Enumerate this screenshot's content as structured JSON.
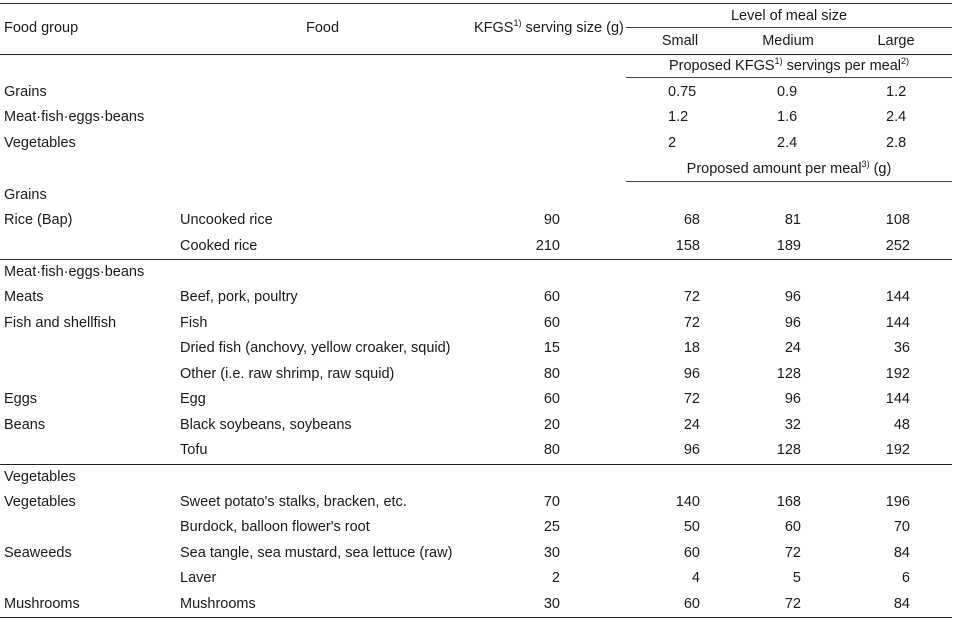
{
  "header": {
    "food_group": "Food group",
    "food": "Food",
    "serving_size": "KFGS",
    "serving_sup": "1)",
    "serving_suffix": " serving size (g)",
    "level": "Level of meal size",
    "small": "Small",
    "medium": "Medium",
    "large": "Large"
  },
  "servings_header": {
    "text": "Proposed KFGS",
    "sup1": "1)",
    "text2": " servings per meal",
    "sup2": "2)"
  },
  "servings": [
    {
      "group": "Grains",
      "small": "0.75",
      "medium": "0.9",
      "large": "1.2"
    },
    {
      "group": "Meat·fish·eggs·beans",
      "small": "1.2",
      "medium": "1.6",
      "large": "2.4"
    },
    {
      "group": "Vegetables",
      "small": "2",
      "medium": "2.4",
      "large": "2.8"
    }
  ],
  "amount_header": {
    "text": "Proposed amount per meal",
    "sup": "3)",
    "suffix": " (g)"
  },
  "sections": [
    {
      "title": "Grains",
      "rows": [
        {
          "group": "Rice (Bap)",
          "food": "Uncooked rice",
          "size": "90",
          "small": "68",
          "medium": "81",
          "large": "108"
        },
        {
          "group": "",
          "food": "Cooked rice",
          "size": "210",
          "small": "158",
          "medium": "189",
          "large": "252"
        }
      ]
    },
    {
      "title": "Meat·fish·eggs·beans",
      "rows": [
        {
          "group": "Meats",
          "food": "Beef, pork, poultry",
          "size": "60",
          "small": "72",
          "medium": "96",
          "large": "144"
        },
        {
          "group": "Fish and shellfish",
          "food": "Fish",
          "size": "60",
          "small": "72",
          "medium": "96",
          "large": "144"
        },
        {
          "group": "",
          "food": "Dried fish (anchovy, yellow croaker, squid)",
          "size": "15",
          "small": "18",
          "medium": "24",
          "large": "36"
        },
        {
          "group": "",
          "food": "Other (i.e. raw shrimp, raw squid)",
          "size": "80",
          "small": "96",
          "medium": "128",
          "large": "192"
        },
        {
          "group": "Eggs",
          "food": "Egg",
          "size": "60",
          "small": "72",
          "medium": "96",
          "large": "144"
        },
        {
          "group": "Beans",
          "food": "Black soybeans, soybeans",
          "size": "20",
          "small": "24",
          "medium": "32",
          "large": "48"
        },
        {
          "group": "",
          "food": "Tofu",
          "size": "80",
          "small": "96",
          "medium": "128",
          "large": "192"
        }
      ]
    },
    {
      "title": "Vegetables",
      "rows": [
        {
          "group": "Vegetables",
          "food": "Sweet potato's stalks, bracken, etc.",
          "size": "70",
          "small": "140",
          "medium": "168",
          "large": "196"
        },
        {
          "group": "",
          "food": "Burdock, balloon flower's root",
          "size": "25",
          "small": "50",
          "medium": "60",
          "large": "70"
        },
        {
          "group": "Seaweeds",
          "food": "Sea tangle, sea mustard, sea lettuce (raw)",
          "size": "30",
          "small": "60",
          "medium": "72",
          "large": "84"
        },
        {
          "group": "",
          "food": "Laver",
          "size": "2",
          "small": "4",
          "medium": "5",
          "large": "6"
        },
        {
          "group": "Mushrooms",
          "food": "Mushrooms",
          "size": "30",
          "small": "60",
          "medium": "72",
          "large": "84"
        }
      ]
    }
  ]
}
